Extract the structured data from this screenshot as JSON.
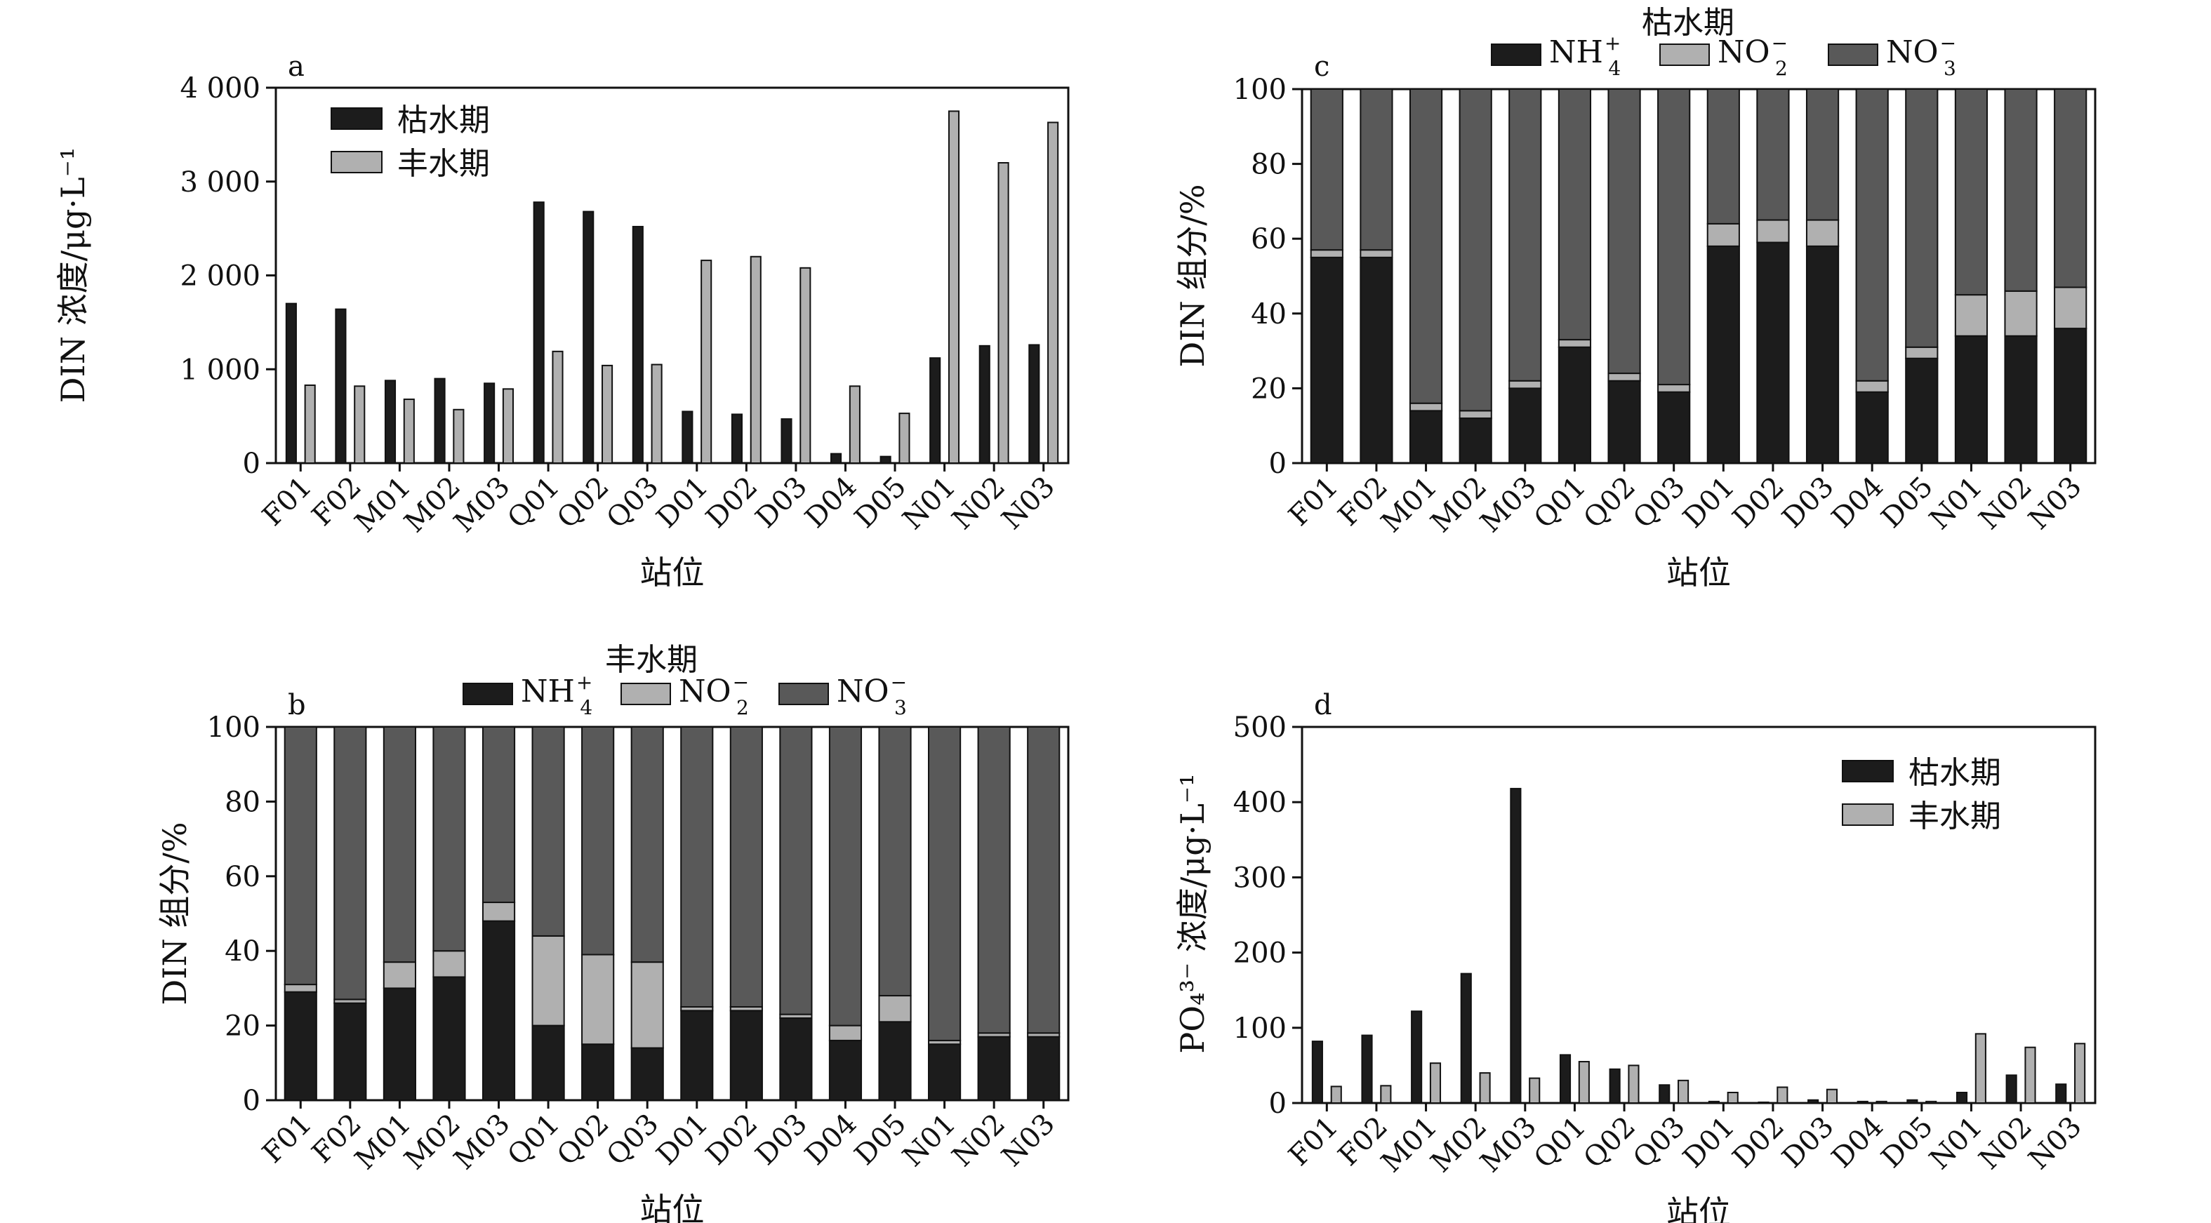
{
  "chart_data": [
    {
      "panel": "a",
      "type": "bar",
      "title": "",
      "xlabel": "站位",
      "ylabel": "DIN 浓度/μg·L⁻¹",
      "ylim": [
        0,
        4000
      ],
      "yticks": [
        0,
        1000,
        2000,
        3000,
        4000
      ],
      "ytick_labels": [
        "0",
        "1 000",
        "2 000",
        "3 000",
        "4 000"
      ],
      "categories": [
        "F01",
        "F02",
        "M01",
        "M02",
        "M03",
        "Q01",
        "Q02",
        "Q03",
        "D01",
        "D02",
        "D03",
        "D04",
        "D05",
        "N01",
        "N02",
        "N03"
      ],
      "series": [
        {
          "name": "枯水期",
          "color": "#1c1c1c",
          "values": [
            1700,
            1640,
            880,
            900,
            850,
            2780,
            2680,
            2520,
            550,
            520,
            470,
            100,
            70,
            1120,
            1250,
            1260
          ]
        },
        {
          "name": "丰水期",
          "color": "#b0b0b0",
          "values": [
            830,
            820,
            680,
            570,
            790,
            1190,
            1040,
            1050,
            2160,
            2200,
            2080,
            820,
            530,
            3750,
            3200,
            3630
          ]
        }
      ],
      "legend": "top-left"
    },
    {
      "panel": "b",
      "type": "bar",
      "stacked": true,
      "title": "丰水期",
      "xlabel": "站位",
      "ylabel": "DIN 组分/%",
      "ylim": [
        0,
        100
      ],
      "yticks": [
        0,
        20,
        40,
        60,
        80,
        100
      ],
      "ytick_labels": [
        "0",
        "20",
        "40",
        "60",
        "80",
        "100"
      ],
      "categories": [
        "F01",
        "F02",
        "M01",
        "M02",
        "M03",
        "Q01",
        "Q02",
        "Q03",
        "D01",
        "D02",
        "D03",
        "D04",
        "D05",
        "N01",
        "N02",
        "N03"
      ],
      "series": [
        {
          "name": "NH4+",
          "label_base": "NH",
          "label_sub": "4",
          "label_sup": "+",
          "color": "#1c1c1c",
          "values": [
            29,
            26,
            30,
            33,
            48,
            20,
            15,
            14,
            24,
            24,
            22,
            16,
            21,
            15,
            17,
            17
          ]
        },
        {
          "name": "NO2-",
          "label_base": "NO",
          "label_sub": "2",
          "label_sup": "−",
          "color": "#b0b0b0",
          "values": [
            2,
            1,
            7,
            7,
            5,
            24,
            24,
            23,
            1,
            1,
            1,
            4,
            7,
            1,
            1,
            1
          ]
        },
        {
          "name": "NO3-",
          "label_base": "NO",
          "label_sub": "3",
          "label_sup": "−",
          "color": "#595959",
          "values": [
            69,
            73,
            63,
            60,
            47,
            56,
            61,
            63,
            75,
            75,
            77,
            80,
            72,
            84,
            82,
            82
          ]
        }
      ],
      "legend": "top-center"
    },
    {
      "panel": "c",
      "type": "bar",
      "stacked": true,
      "title": "枯水期",
      "xlabel": "站位",
      "ylabel": "DIN 组分/%",
      "ylim": [
        0,
        100
      ],
      "yticks": [
        0,
        20,
        40,
        60,
        80,
        100
      ],
      "ytick_labels": [
        "0",
        "20",
        "40",
        "60",
        "80",
        "100"
      ],
      "categories": [
        "F01",
        "F02",
        "M01",
        "M02",
        "M03",
        "Q01",
        "Q02",
        "Q03",
        "D01",
        "D02",
        "D03",
        "D04",
        "D05",
        "N01",
        "N02",
        "N03"
      ],
      "series": [
        {
          "name": "NH4+",
          "label_base": "NH",
          "label_sub": "4",
          "label_sup": "+",
          "color": "#1c1c1c",
          "values": [
            55,
            55,
            14,
            12,
            20,
            31,
            22,
            19,
            58,
            59,
            58,
            19,
            28,
            34,
            34,
            36
          ]
        },
        {
          "name": "NO2-",
          "label_base": "NO",
          "label_sub": "2",
          "label_sup": "−",
          "color": "#b0b0b0",
          "values": [
            2,
            2,
            2,
            2,
            2,
            2,
            2,
            2,
            6,
            6,
            7,
            3,
            3,
            11,
            12,
            11
          ]
        },
        {
          "name": "NO3-",
          "label_base": "NO",
          "label_sub": "3",
          "label_sup": "−",
          "color": "#595959",
          "values": [
            43,
            43,
            84,
            86,
            78,
            67,
            76,
            79,
            36,
            35,
            35,
            78,
            69,
            55,
            54,
            53
          ]
        }
      ],
      "legend": "top-center"
    },
    {
      "panel": "d",
      "type": "bar",
      "title": "",
      "xlabel": "站位",
      "ylabel": "PO₄³⁻ 浓度/μg·L⁻¹",
      "ylim": [
        0,
        500
      ],
      "yticks": [
        0,
        100,
        200,
        300,
        400,
        500
      ],
      "ytick_labels": [
        "0",
        "100",
        "200",
        "300",
        "400",
        "500"
      ],
      "categories": [
        "F01",
        "F02",
        "M01",
        "M02",
        "M03",
        "Q01",
        "Q02",
        "Q03",
        "D01",
        "D02",
        "D03",
        "D04",
        "D05",
        "N01",
        "N02",
        "N03"
      ],
      "series": [
        {
          "name": "枯水期",
          "color": "#1c1c1c",
          "values": [
            82,
            90,
            122,
            172,
            418,
            64,
            45,
            24,
            2,
            1,
            4,
            2,
            4,
            14,
            37,
            25
          ]
        },
        {
          "name": "丰水期",
          "color": "#b0b0b0",
          "values": [
            22,
            23,
            53,
            40,
            33,
            55,
            50,
            30,
            14,
            21,
            18,
            2,
            2,
            92,
            74,
            79
          ]
        }
      ],
      "legend": "top-right"
    }
  ]
}
